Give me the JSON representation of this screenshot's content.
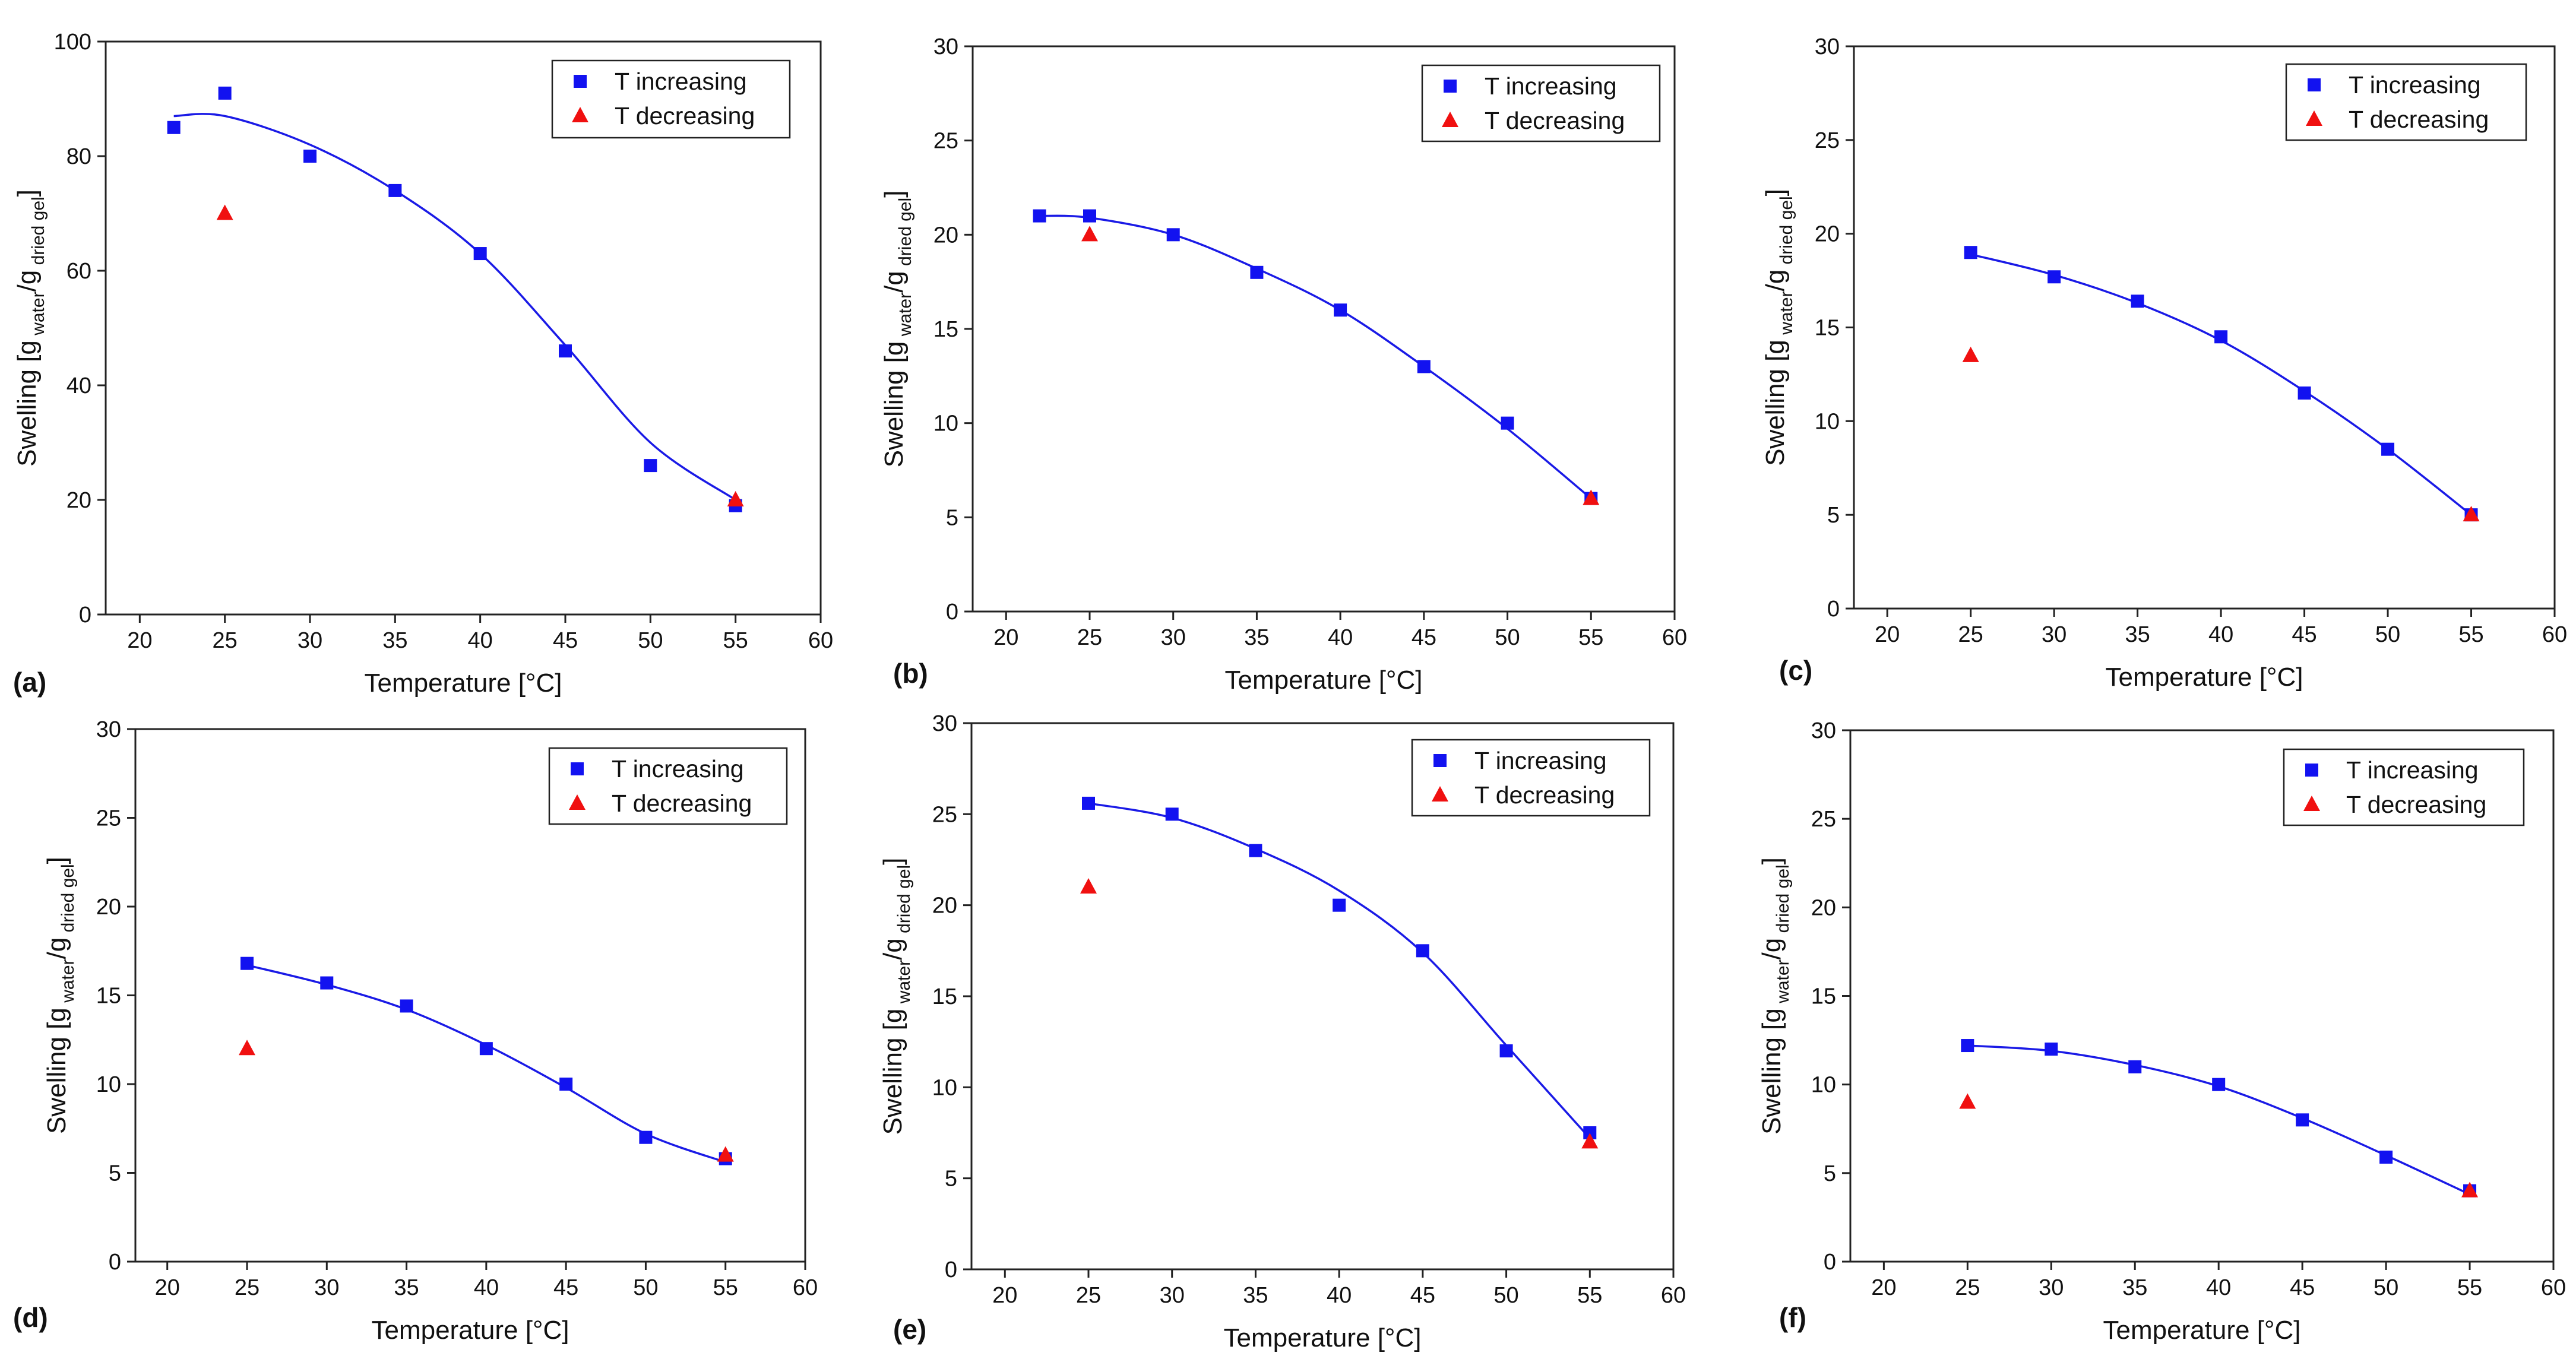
{
  "colors": {
    "increasing": "#1212f0",
    "decreasing": "#f01010",
    "axis": "#222222",
    "fit": "#1a1ae6"
  },
  "legend": {
    "increasing": "T increasing",
    "decreasing": "T decreasing"
  },
  "chart_data": [
    {
      "type": "scatter",
      "panel_label": "(a)",
      "xlabel": "Temperature [°C]",
      "ylabel": {
        "base": "Swelling [g",
        "sub1": " water",
        "mid": "/g",
        "sub2": " dried gel",
        "end": "]"
      },
      "xlim": [
        18,
        60
      ],
      "ylim": [
        0,
        100
      ],
      "xticks": [
        20,
        25,
        30,
        35,
        40,
        45,
        50,
        55,
        60
      ],
      "yticks": [
        0,
        20,
        40,
        60,
        80,
        100
      ],
      "series": [
        {
          "name": "T increasing",
          "marker": "square",
          "x": [
            22,
            25,
            30,
            35,
            40,
            45,
            50,
            55
          ],
          "y": [
            85,
            91,
            80,
            74,
            63,
            46,
            26,
            19
          ]
        },
        {
          "name": "T decreasing",
          "marker": "triangle",
          "x": [
            25,
            55
          ],
          "y": [
            70,
            20
          ]
        }
      ],
      "fit": {
        "x": [
          22,
          25,
          30,
          35,
          40,
          45,
          50,
          55
        ],
        "y": [
          87,
          87,
          82,
          74,
          63,
          47,
          30,
          20
        ]
      }
    },
    {
      "type": "scatter",
      "panel_label": "(b)",
      "xlabel": "Temperature [°C]",
      "ylabel": {
        "base": "Swelling [g",
        "sub1": " water",
        "mid": "/g",
        "sub2": " dried gel",
        "end": "]"
      },
      "xlim": [
        18,
        60
      ],
      "ylim": [
        0,
        30
      ],
      "xticks": [
        20,
        25,
        30,
        35,
        40,
        45,
        50,
        55,
        60
      ],
      "yticks": [
        0,
        5,
        10,
        15,
        20,
        25,
        30
      ],
      "series": [
        {
          "name": "T increasing",
          "marker": "square",
          "x": [
            22,
            25,
            30,
            35,
            40,
            45,
            50,
            55
          ],
          "y": [
            21,
            21,
            20,
            18,
            16,
            13,
            10,
            6
          ]
        },
        {
          "name": "T decreasing",
          "marker": "triangle",
          "x": [
            25,
            55
          ],
          "y": [
            20,
            6
          ]
        }
      ],
      "fit": {
        "x": [
          22,
          25,
          30,
          35,
          40,
          45,
          50,
          55
        ],
        "y": [
          21,
          20.9,
          20,
          18.2,
          16,
          13,
          9.7,
          6
        ]
      }
    },
    {
      "type": "scatter",
      "panel_label": "(c)",
      "xlabel": "Temperature [°C]",
      "ylabel": {
        "base": "Swelling [g",
        "sub1": " water",
        "mid": "/g",
        "sub2": " dried gel",
        "end": "]"
      },
      "xlim": [
        18,
        60
      ],
      "ylim": [
        0,
        30
      ],
      "xticks": [
        20,
        25,
        30,
        35,
        40,
        45,
        50,
        55,
        60
      ],
      "yticks": [
        0,
        5,
        10,
        15,
        20,
        25,
        30
      ],
      "series": [
        {
          "name": "T increasing",
          "marker": "square",
          "x": [
            25,
            30,
            35,
            40,
            45,
            50,
            55
          ],
          "y": [
            19,
            17.7,
            16.4,
            14.5,
            11.5,
            8.5,
            5
          ]
        },
        {
          "name": "T decreasing",
          "marker": "triangle",
          "x": [
            25,
            55
          ],
          "y": [
            13.5,
            5
          ]
        }
      ],
      "fit": {
        "x": [
          25,
          30,
          35,
          40,
          45,
          50,
          55
        ],
        "y": [
          18.9,
          17.8,
          16.3,
          14.3,
          11.6,
          8.5,
          5
        ]
      }
    },
    {
      "type": "scatter",
      "panel_label": "(d)",
      "xlabel": "Temperature [°C]",
      "ylabel": {
        "base": "Swelling [g",
        "sub1": " water",
        "mid": "/g",
        "sub2": " dried gel",
        "end": "]"
      },
      "xlim": [
        18,
        60
      ],
      "ylim": [
        0,
        30
      ],
      "xticks": [
        20,
        25,
        30,
        35,
        40,
        45,
        50,
        55,
        60
      ],
      "yticks": [
        0,
        5,
        10,
        15,
        20,
        25,
        30
      ],
      "series": [
        {
          "name": "T increasing",
          "marker": "square",
          "x": [
            25,
            30,
            35,
            40,
            45,
            50,
            55
          ],
          "y": [
            16.8,
            15.7,
            14.4,
            12,
            10,
            7,
            5.8
          ]
        },
        {
          "name": "T decreasing",
          "marker": "triangle",
          "x": [
            25,
            55
          ],
          "y": [
            12,
            6
          ]
        }
      ],
      "fit": {
        "x": [
          25,
          30,
          35,
          40,
          45,
          50,
          55
        ],
        "y": [
          16.7,
          15.6,
          14.2,
          12.2,
          9.8,
          7.2,
          5.6
        ]
      }
    },
    {
      "type": "scatter",
      "panel_label": "(e)",
      "xlabel": "Temperature [°C]",
      "ylabel": {
        "base": "Swelling [g",
        "sub1": " water",
        "mid": "/g",
        "sub2": " dried gel",
        "end": "]"
      },
      "xlim": [
        18,
        60
      ],
      "ylim": [
        0,
        30
      ],
      "xticks": [
        20,
        25,
        30,
        35,
        40,
        45,
        50,
        55,
        60
      ],
      "yticks": [
        0,
        5,
        10,
        15,
        20,
        25,
        30
      ],
      "series": [
        {
          "name": "T increasing",
          "marker": "square",
          "x": [
            25,
            30,
            35,
            40,
            45,
            50,
            55
          ],
          "y": [
            25.6,
            25,
            23,
            20,
            17.5,
            12,
            7.5
          ]
        },
        {
          "name": "T decreasing",
          "marker": "triangle",
          "x": [
            25,
            55
          ],
          "y": [
            21,
            7
          ]
        }
      ],
      "fit": {
        "x": [
          25,
          30,
          35,
          40,
          45,
          50,
          55
        ],
        "y": [
          25.6,
          24.8,
          23.1,
          20.8,
          17.4,
          12.3,
          7.2
        ]
      }
    },
    {
      "type": "scatter",
      "panel_label": "(f)",
      "xlabel": "Temperature [°C]",
      "ylabel": {
        "base": "Swelling [g",
        "sub1": " water",
        "mid": "/g",
        "sub2": " dried gel",
        "end": "]"
      },
      "xlim": [
        18,
        60
      ],
      "ylim": [
        0,
        30
      ],
      "xticks": [
        20,
        25,
        30,
        35,
        40,
        45,
        50,
        55,
        60
      ],
      "yticks": [
        0,
        5,
        10,
        15,
        20,
        25,
        30
      ],
      "series": [
        {
          "name": "T increasing",
          "marker": "square",
          "x": [
            25,
            30,
            35,
            40,
            45,
            50,
            55
          ],
          "y": [
            12.2,
            12,
            11,
            10,
            8,
            5.9,
            4
          ]
        },
        {
          "name": "T decreasing",
          "marker": "triangle",
          "x": [
            25,
            55
          ],
          "y": [
            9,
            4
          ]
        }
      ],
      "fit": {
        "x": [
          25,
          30,
          35,
          40,
          45,
          50,
          55
        ],
        "y": [
          12.2,
          11.9,
          11.1,
          9.9,
          8.1,
          6.0,
          3.8
        ]
      }
    }
  ]
}
